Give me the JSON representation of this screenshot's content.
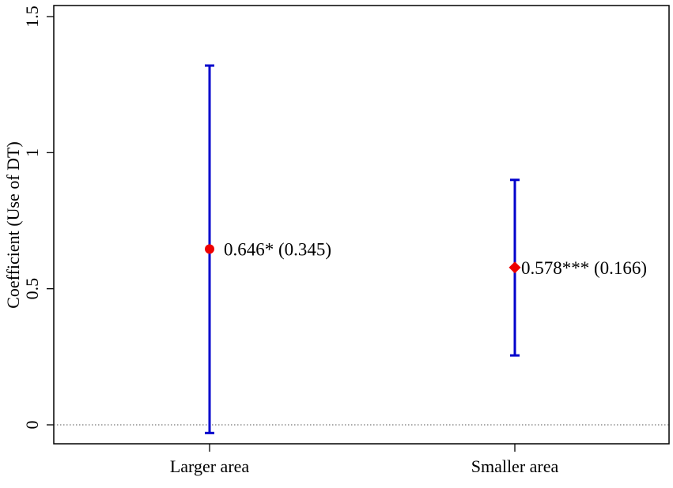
{
  "chart_data": {
    "type": "scatter",
    "subtype": "coefficient-plot-with-error-bars",
    "title": "",
    "xlabel": "",
    "ylabel": "Coefficient (Use of DT)",
    "ylim": [
      -0.1,
      1.5
    ],
    "yticks": [
      0,
      0.5,
      1,
      1.5
    ],
    "ytick_labels": [
      "0",
      "0.5",
      "1",
      "1.5"
    ],
    "categories": [
      "Larger area",
      "Smaller area"
    ],
    "points": [
      {
        "category": "Larger area",
        "estimate": 0.646,
        "ci_low": -0.03,
        "ci_high": 1.32,
        "label": "0.646* (0.345)",
        "marker": "circle"
      },
      {
        "category": "Smaller area",
        "estimate": 0.578,
        "ci_low": 0.255,
        "ci_high": 0.9,
        "label": "0.578*** (0.166)",
        "marker": "diamond"
      }
    ],
    "reference_line": {
      "y": 0,
      "style": "dotted"
    },
    "grid": false,
    "legend": "none",
    "colors": {
      "error_bar": "#0000cc",
      "point": "#ee0000",
      "reference_line": "#555555",
      "axis": "#000000"
    }
  }
}
